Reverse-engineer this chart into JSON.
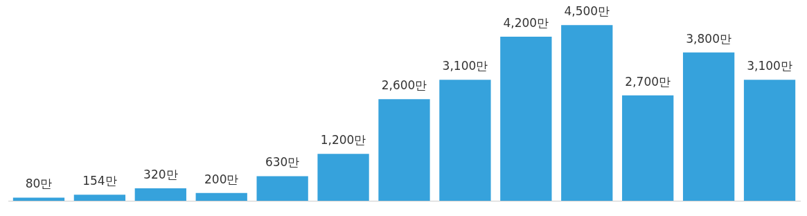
{
  "chart_data": {
    "type": "bar",
    "categories": [
      null,
      null,
      null,
      null,
      null,
      null,
      null,
      null,
      null,
      null,
      null,
      null,
      null
    ],
    "values": [
      80,
      154,
      320,
      200,
      630,
      1200,
      2600,
      3100,
      4200,
      4500,
      2700,
      3800,
      3100
    ],
    "value_labels": [
      "80만",
      "154만",
      "320만",
      "200만",
      "630만",
      "1,200만",
      "2,600만",
      "3,100만",
      "4,200만",
      "4,500만",
      "2,700만",
      "3,800만",
      "3,100만"
    ],
    "color": "#36a2dc",
    "grid": false,
    "legend": false,
    "tick_labels": false
  }
}
